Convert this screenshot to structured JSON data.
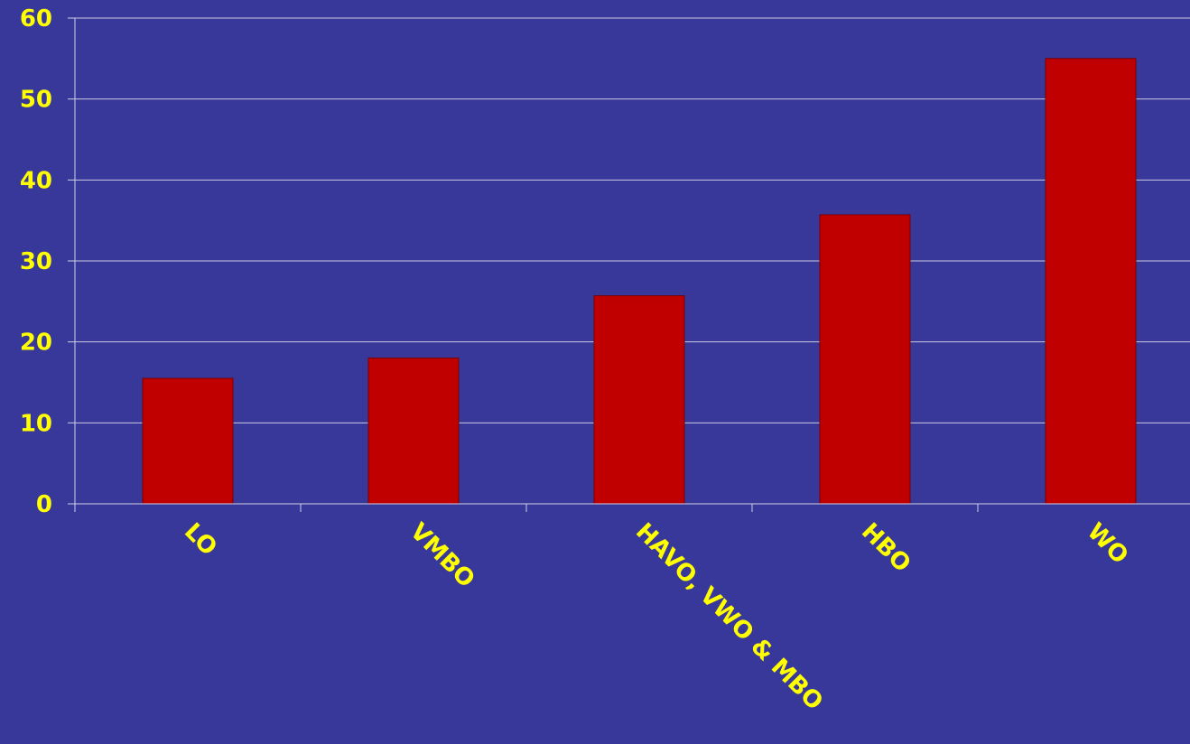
{
  "colors": {
    "background": "#38389a",
    "bar_fill": "#c00000",
    "bar_stroke": "#7a0000",
    "gridline": "#c8c8e0",
    "axis": "#d0d0e8",
    "label_text": "#ffff00"
  },
  "chart_data": {
    "type": "bar",
    "title": "",
    "xlabel": "",
    "ylabel": "",
    "categories": [
      "LO",
      "VMBO",
      "HAVO, VWO & MBO",
      "HBO",
      "WO"
    ],
    "values": [
      15.5,
      18,
      25.7,
      35.7,
      55
    ],
    "ylim": [
      0,
      60
    ],
    "yticks": [
      0,
      10,
      20,
      30,
      40,
      50,
      60
    ],
    "grid": true,
    "legend": "none"
  }
}
